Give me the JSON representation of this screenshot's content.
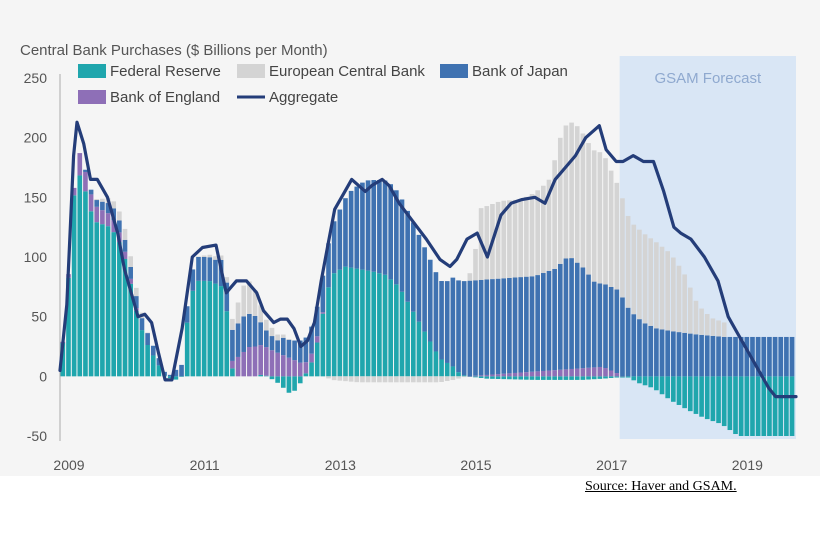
{
  "chart_data": {
    "type": "bar",
    "stacked": true,
    "title": "Central Bank Purchases ($ Billions per Month)",
    "xlabel": "",
    "ylabel": "",
    "ylim": [
      -50,
      250
    ],
    "yticks": [
      250,
      200,
      150,
      100,
      50,
      0,
      -50
    ],
    "xlim": [
      2009.0,
      2019.85
    ],
    "xticks": [
      2009,
      2011,
      2013,
      2015,
      2017,
      2019
    ],
    "xtick_labels": [
      "2009",
      "2011",
      "2013",
      "2015",
      "2017",
      "2019"
    ],
    "forecast_region": {
      "label": "GSAM Forecast",
      "start": 2017.25,
      "end": 2019.85
    },
    "legend": [
      {
        "name": "Federal Reserve",
        "kind": "bar",
        "color": "#1fa6ad"
      },
      {
        "name": "European Central Bank",
        "kind": "bar",
        "color": "#d4d4d4"
      },
      {
        "name": "Bank of Japan",
        "kind": "bar",
        "color": "#3f72b1"
      },
      {
        "name": "Bank of England",
        "kind": "bar",
        "color": "#8e6fb7"
      },
      {
        "name": "Aggregate",
        "kind": "line",
        "color": "#243d79"
      }
    ],
    "series_note": "Monthly stacked contributions approximated; keypoints interpolated linearly per month",
    "series": [
      {
        "name": "Federal Reserve",
        "color": "#1fa6ad",
        "points": [
          [
            2009.0,
            5
          ],
          [
            2009.1,
            60
          ],
          [
            2009.2,
            150
          ],
          [
            2009.3,
            170
          ],
          [
            2009.4,
            150
          ],
          [
            2009.5,
            130
          ],
          [
            2009.75,
            125
          ],
          [
            2009.9,
            110
          ],
          [
            2010.0,
            90
          ],
          [
            2010.1,
            60
          ],
          [
            2010.2,
            40
          ],
          [
            2010.3,
            25
          ],
          [
            2010.4,
            15
          ],
          [
            2010.5,
            5
          ],
          [
            2010.55,
            0
          ],
          [
            2010.7,
            -3
          ],
          [
            2010.8,
            0
          ],
          [
            2010.9,
            60
          ],
          [
            2011.0,
            80
          ],
          [
            2011.2,
            80
          ],
          [
            2011.4,
            75
          ],
          [
            2011.5,
            40
          ],
          [
            2011.55,
            0
          ],
          [
            2011.9,
            0
          ],
          [
            2012.0,
            2
          ],
          [
            2012.2,
            -5
          ],
          [
            2012.3,
            -10
          ],
          [
            2012.4,
            -15
          ],
          [
            2012.5,
            -10
          ],
          [
            2012.7,
            10
          ],
          [
            2012.8,
            30
          ],
          [
            2012.9,
            60
          ],
          [
            2013.0,
            85
          ],
          [
            2013.2,
            92
          ],
          [
            2013.4,
            90
          ],
          [
            2013.6,
            88
          ],
          [
            2013.8,
            85
          ],
          [
            2014.0,
            75
          ],
          [
            2014.2,
            55
          ],
          [
            2014.4,
            35
          ],
          [
            2014.6,
            15
          ],
          [
            2014.8,
            8
          ],
          [
            2014.9,
            2
          ],
          [
            2015.0,
            0
          ],
          [
            2015.3,
            -2
          ],
          [
            2016.0,
            -3
          ],
          [
            2016.7,
            -3
          ],
          [
            2017.0,
            -2
          ],
          [
            2017.2,
            -1
          ],
          [
            2017.4,
            -1
          ],
          [
            2017.5,
            -5
          ],
          [
            2017.75,
            -10
          ],
          [
            2018.0,
            -20
          ],
          [
            2018.25,
            -28
          ],
          [
            2018.5,
            -35
          ],
          [
            2018.75,
            -40
          ],
          [
            2019.0,
            -50
          ],
          [
            2019.2,
            -50
          ],
          [
            2019.85,
            -50
          ]
        ]
      },
      {
        "name": "Bank of England",
        "color": "#8e6fb7",
        "points": [
          [
            2009.0,
            0
          ],
          [
            2009.2,
            5
          ],
          [
            2009.3,
            20
          ],
          [
            2009.4,
            15
          ],
          [
            2009.6,
            12
          ],
          [
            2009.8,
            10
          ],
          [
            2010.0,
            5
          ],
          [
            2010.1,
            3
          ],
          [
            2010.2,
            0
          ],
          [
            2011.5,
            0
          ],
          [
            2011.6,
            15
          ],
          [
            2011.8,
            25
          ],
          [
            2012.0,
            25
          ],
          [
            2012.2,
            20
          ],
          [
            2012.4,
            15
          ],
          [
            2012.6,
            10
          ],
          [
            2012.8,
            5
          ],
          [
            2012.9,
            0
          ],
          [
            2015.0,
            0
          ],
          [
            2017.0,
            8
          ],
          [
            2017.2,
            3
          ],
          [
            2017.3,
            0
          ],
          [
            2019.85,
            0
          ]
        ]
      },
      {
        "name": "Bank of Japan",
        "color": "#3f72b1",
        "points": [
          [
            2009.0,
            0
          ],
          [
            2009.3,
            0
          ],
          [
            2009.5,
            5
          ],
          [
            2009.8,
            10
          ],
          [
            2010.0,
            10
          ],
          [
            2010.3,
            10
          ],
          [
            2010.5,
            5
          ],
          [
            2010.6,
            0
          ],
          [
            2010.9,
            15
          ],
          [
            2011.0,
            20
          ],
          [
            2011.3,
            20
          ],
          [
            2011.5,
            25
          ],
          [
            2011.7,
            30
          ],
          [
            2011.9,
            25
          ],
          [
            2012.0,
            15
          ],
          [
            2012.2,
            10
          ],
          [
            2012.3,
            15
          ],
          [
            2012.4,
            15
          ],
          [
            2012.6,
            20
          ],
          [
            2012.8,
            25
          ],
          [
            2013.0,
            40
          ],
          [
            2013.3,
            65
          ],
          [
            2013.5,
            75
          ],
          [
            2013.7,
            78
          ],
          [
            2013.9,
            80
          ],
          [
            2014.0,
            78
          ],
          [
            2014.2,
            75
          ],
          [
            2014.4,
            70
          ],
          [
            2014.6,
            65
          ],
          [
            2014.7,
            68
          ],
          [
            2014.8,
            75
          ],
          [
            2015.0,
            80
          ],
          [
            2015.5,
            80
          ],
          [
            2016.0,
            80
          ],
          [
            2016.3,
            85
          ],
          [
            2016.5,
            95
          ],
          [
            2016.7,
            85
          ],
          [
            2016.9,
            70
          ],
          [
            2017.0,
            70
          ],
          [
            2017.25,
            70
          ],
          [
            2017.4,
            55
          ],
          [
            2017.6,
            45
          ],
          [
            2017.8,
            40
          ],
          [
            2018.0,
            38
          ],
          [
            2018.4,
            35
          ],
          [
            2018.8,
            33
          ],
          [
            2019.0,
            33
          ],
          [
            2019.85,
            33
          ]
        ]
      },
      {
        "name": "European Central Bank",
        "color": "#d4d4d4",
        "points": [
          [
            2009.0,
            0
          ],
          [
            2009.5,
            0
          ],
          [
            2010.0,
            10
          ],
          [
            2010.2,
            5
          ],
          [
            2010.3,
            0
          ],
          [
            2011.0,
            0
          ],
          [
            2011.5,
            5
          ],
          [
            2011.6,
            15
          ],
          [
            2011.75,
            30
          ],
          [
            2011.9,
            20
          ],
          [
            2012.0,
            10
          ],
          [
            2012.2,
            5
          ],
          [
            2012.4,
            0
          ],
          [
            2012.9,
            0
          ],
          [
            2013.0,
            -3
          ],
          [
            2013.4,
            -5
          ],
          [
            2013.8,
            -5
          ],
          [
            2014.2,
            -5
          ],
          [
            2014.6,
            -5
          ],
          [
            2014.8,
            -3
          ],
          [
            2015.0,
            0
          ],
          [
            2015.1,
            15
          ],
          [
            2015.2,
            60
          ],
          [
            2015.5,
            65
          ],
          [
            2015.8,
            65
          ],
          [
            2016.0,
            70
          ],
          [
            2016.2,
            75
          ],
          [
            2016.4,
            110
          ],
          [
            2016.6,
            115
          ],
          [
            2016.8,
            110
          ],
          [
            2017.0,
            110
          ],
          [
            2017.2,
            90
          ],
          [
            2017.4,
            75
          ],
          [
            2017.6,
            75
          ],
          [
            2017.8,
            72
          ],
          [
            2018.0,
            65
          ],
          [
            2018.2,
            50
          ],
          [
            2018.4,
            25
          ],
          [
            2018.6,
            15
          ],
          [
            2018.8,
            12
          ],
          [
            2018.85,
            0
          ],
          [
            2019.85,
            0
          ]
        ]
      }
    ],
    "aggregate": {
      "name": "Aggregate",
      "color": "#243d79",
      "points": [
        [
          2009.0,
          5
        ],
        [
          2009.1,
          60
        ],
        [
          2009.2,
          185
        ],
        [
          2009.25,
          213
        ],
        [
          2009.35,
          195
        ],
        [
          2009.45,
          165
        ],
        [
          2009.55,
          165
        ],
        [
          2009.7,
          150
        ],
        [
          2009.85,
          120
        ],
        [
          2009.95,
          90
        ],
        [
          2010.05,
          70
        ],
        [
          2010.15,
          50
        ],
        [
          2010.25,
          52
        ],
        [
          2010.35,
          45
        ],
        [
          2010.45,
          20
        ],
        [
          2010.55,
          -3
        ],
        [
          2010.65,
          -3
        ],
        [
          2010.8,
          40
        ],
        [
          2010.95,
          100
        ],
        [
          2011.1,
          108
        ],
        [
          2011.3,
          110
        ],
        [
          2011.45,
          70
        ],
        [
          2011.6,
          80
        ],
        [
          2011.75,
          80
        ],
        [
          2011.9,
          70
        ],
        [
          2012.0,
          55
        ],
        [
          2012.15,
          45
        ],
        [
          2012.25,
          48
        ],
        [
          2012.35,
          48
        ],
        [
          2012.45,
          40
        ],
        [
          2012.55,
          25
        ],
        [
          2012.65,
          30
        ],
        [
          2012.75,
          45
        ],
        [
          2012.85,
          80
        ],
        [
          2012.95,
          110
        ],
        [
          2013.05,
          140
        ],
        [
          2013.2,
          155
        ],
        [
          2013.3,
          165
        ],
        [
          2013.4,
          160
        ],
        [
          2013.5,
          155
        ],
        [
          2013.6,
          160
        ],
        [
          2013.75,
          165
        ],
        [
          2013.85,
          160
        ],
        [
          2014.0,
          145
        ],
        [
          2014.2,
          130
        ],
        [
          2014.4,
          115
        ],
        [
          2014.6,
          98
        ],
        [
          2014.75,
          92
        ],
        [
          2014.85,
          98
        ],
        [
          2015.0,
          115
        ],
        [
          2015.15,
          120
        ],
        [
          2015.3,
          100
        ],
        [
          2015.5,
          135
        ],
        [
          2015.65,
          145
        ],
        [
          2015.8,
          148
        ],
        [
          2016.0,
          150
        ],
        [
          2016.15,
          145
        ],
        [
          2016.3,
          165
        ],
        [
          2016.45,
          175
        ],
        [
          2016.6,
          185
        ],
        [
          2016.75,
          200
        ],
        [
          2016.95,
          210
        ],
        [
          2017.05,
          190
        ],
        [
          2017.2,
          180
        ],
        [
          2017.3,
          180
        ],
        [
          2017.45,
          185
        ],
        [
          2017.6,
          180
        ],
        [
          2017.75,
          180
        ],
        [
          2017.9,
          155
        ],
        [
          2018.05,
          125
        ],
        [
          2018.15,
          120
        ],
        [
          2018.3,
          115
        ],
        [
          2018.5,
          100
        ],
        [
          2018.7,
          80
        ],
        [
          2018.85,
          50
        ],
        [
          2019.0,
          35
        ],
        [
          2019.15,
          20
        ],
        [
          2019.3,
          5
        ],
        [
          2019.45,
          -10
        ],
        [
          2019.55,
          -17
        ],
        [
          2019.85,
          -17
        ]
      ]
    }
  },
  "source_note": "Source: Haver and GSAM."
}
